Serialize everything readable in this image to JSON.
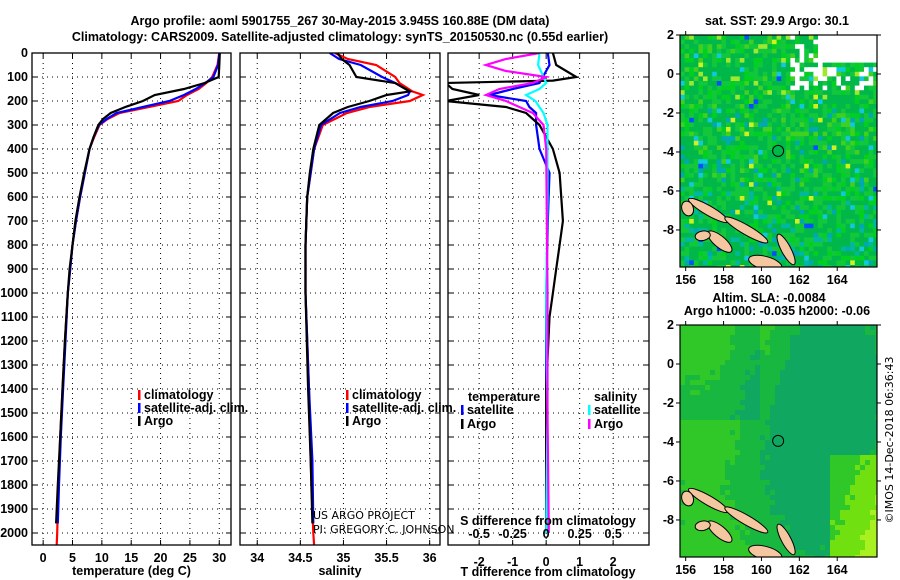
{
  "title": {
    "line1": "Argo profile: aoml 5901755_267 30-May-2015 3.945S 160.88E (DM data)",
    "line2": "Climatology: CARS2009. Satellite-adjusted climatology: synTS_20150530.nc (0.55d earlier)"
  },
  "colors": {
    "climatology": "#ff0000",
    "satellite": "#0000ff",
    "argo": "#000000",
    "sat_salinity": "#00ffff",
    "argo_salinity": "#ff00ff",
    "land": "#f5c7a0"
  },
  "credit": {
    "line1": "US ARGO PROJECT",
    "line2": "PI: GREGORY C. JOHNSON"
  },
  "watermark": "©IMOS 14-Dec-2018 06:36:43",
  "chart_data": [
    {
      "type": "line",
      "name": "temperature-profile",
      "xlabel": "temperature (deg C)",
      "ylabel": "pressure",
      "xlim": [
        -1.9,
        32
      ],
      "ylim": [
        2050,
        0
      ],
      "xticks": [
        0,
        5,
        10,
        15,
        20,
        25,
        30
      ],
      "yticks": [
        0,
        100,
        200,
        300,
        400,
        500,
        600,
        700,
        800,
        900,
        1000,
        1100,
        1200,
        1300,
        1400,
        1500,
        1600,
        1700,
        1800,
        1900,
        2000
      ],
      "legend": {
        "placement": "middle-right",
        "entries": [
          "climatology",
          "satellite-adj. clim.",
          "Argo"
        ]
      },
      "series": [
        {
          "name": "climatology",
          "color": "#ff0000",
          "points": [
            [
              0,
              30
            ],
            [
              50,
              29.7
            ],
            [
              100,
              28.8
            ],
            [
              125,
              27.8
            ],
            [
              150,
              26.5
            ],
            [
              175,
              24.5
            ],
            [
              200,
              23
            ],
            [
              225,
              18
            ],
            [
              250,
              13
            ],
            [
              275,
              11
            ],
            [
              300,
              9.6
            ],
            [
              350,
              8.7
            ],
            [
              400,
              7.9
            ],
            [
              500,
              7.1
            ],
            [
              600,
              6.3
            ],
            [
              700,
              5.6
            ],
            [
              800,
              5.0
            ],
            [
              900,
              4.6
            ],
            [
              1000,
              4.2
            ],
            [
              1200,
              3.7
            ],
            [
              1400,
              3.3
            ],
            [
              1600,
              2.9
            ],
            [
              1800,
              2.6
            ],
            [
              2000,
              2.4
            ],
            [
              2050,
              2.3
            ]
          ]
        },
        {
          "name": "satellite-adj. clim.",
          "color": "#0000ff",
          "points": [
            [
              0,
              30
            ],
            [
              50,
              29.8
            ],
            [
              100,
              29
            ],
            [
              125,
              27.6
            ],
            [
              150,
              26
            ],
            [
              175,
              24
            ],
            [
              200,
              21.5
            ],
            [
              225,
              17
            ],
            [
              250,
              12.5
            ],
            [
              275,
              10.8
            ],
            [
              300,
              9.5
            ],
            [
              350,
              8.6
            ],
            [
              400,
              7.9
            ],
            [
              500,
              7.1
            ],
            [
              600,
              6.3
            ],
            [
              700,
              5.6
            ],
            [
              800,
              5.0
            ],
            [
              900,
              4.6
            ],
            [
              1000,
              4.2
            ],
            [
              1200,
              3.8
            ],
            [
              1400,
              3.4
            ],
            [
              1600,
              3.0
            ],
            [
              1800,
              2.7
            ],
            [
              1960,
              2.5
            ]
          ]
        },
        {
          "name": "Argo",
          "color": "#000000",
          "points": [
            [
              0,
              30.1
            ],
            [
              50,
              30
            ],
            [
              100,
              29.9
            ],
            [
              125,
              27.5
            ],
            [
              150,
              24
            ],
            [
              175,
              19
            ],
            [
              200,
              17
            ],
            [
              225,
              14
            ],
            [
              250,
              11.5
            ],
            [
              275,
              10.2
            ],
            [
              300,
              9.4
            ],
            [
              350,
              8.6
            ],
            [
              400,
              7.9
            ],
            [
              500,
              7.0
            ],
            [
              600,
              6.2
            ],
            [
              700,
              5.5
            ],
            [
              800,
              5.0
            ],
            [
              900,
              4.5
            ],
            [
              1000,
              4.2
            ],
            [
              1200,
              3.7
            ],
            [
              1400,
              3.3
            ],
            [
              1600,
              2.9
            ],
            [
              1800,
              2.5
            ],
            [
              1960,
              2.2
            ]
          ]
        }
      ]
    },
    {
      "type": "line",
      "name": "salinity-profile",
      "xlabel": "salinity",
      "xlim": [
        33.8,
        36.12
      ],
      "ylim": [
        2050,
        0
      ],
      "xticks": [
        34,
        34.5,
        35,
        35.5,
        36
      ],
      "legend": {
        "placement": "middle-right",
        "entries": [
          "climatology",
          "satellite-adj. clim.",
          "Argo"
        ]
      },
      "series": [
        {
          "name": "climatology",
          "color": "#ff0000",
          "points": [
            [
              0,
              34.9
            ],
            [
              25,
              35.05
            ],
            [
              50,
              35.38
            ],
            [
              100,
              35.6
            ],
            [
              125,
              35.65
            ],
            [
              160,
              35.8
            ],
            [
              175,
              35.92
            ],
            [
              200,
              35.77
            ],
            [
              225,
              35.3
            ],
            [
              250,
              35.04
            ],
            [
              300,
              34.76
            ],
            [
              400,
              34.66
            ],
            [
              500,
              34.62
            ],
            [
              600,
              34.58
            ],
            [
              800,
              34.56
            ],
            [
              1000,
              34.56
            ],
            [
              1400,
              34.6
            ],
            [
              1700,
              34.62
            ],
            [
              2000,
              34.65
            ],
            [
              2050,
              34.66
            ]
          ]
        },
        {
          "name": "satellite-adj. clim.",
          "color": "#0000ff",
          "points": [
            [
              0,
              34.84
            ],
            [
              25,
              34.95
            ],
            [
              50,
              35.2
            ],
            [
              100,
              35.45
            ],
            [
              125,
              35.6
            ],
            [
              160,
              35.77
            ],
            [
              175,
              35.75
            ],
            [
              200,
              35.57
            ],
            [
              225,
              35.2
            ],
            [
              250,
              34.96
            ],
            [
              300,
              34.74
            ],
            [
              400,
              34.66
            ],
            [
              500,
              34.62
            ],
            [
              600,
              34.58
            ],
            [
              800,
              34.56
            ],
            [
              1000,
              34.56
            ],
            [
              1400,
              34.6
            ],
            [
              1700,
              34.64
            ],
            [
              1960,
              34.65
            ]
          ]
        },
        {
          "name": "Argo",
          "color": "#000000",
          "points": [
            [
              0,
              34.93
            ],
            [
              25,
              34.98
            ],
            [
              50,
              35.07
            ],
            [
              100,
              35.15
            ],
            [
              125,
              35.6
            ],
            [
              160,
              35.77
            ],
            [
              175,
              35.5
            ],
            [
              200,
              35.3
            ],
            [
              225,
              35.05
            ],
            [
              250,
              34.88
            ],
            [
              300,
              34.72
            ],
            [
              400,
              34.65
            ],
            [
              500,
              34.61
            ],
            [
              600,
              34.58
            ],
            [
              800,
              34.56
            ],
            [
              1000,
              34.56
            ],
            [
              1400,
              34.59
            ],
            [
              1700,
              34.62
            ],
            [
              1960,
              34.64
            ]
          ]
        }
      ]
    },
    {
      "type": "line",
      "name": "difference-profile",
      "xlabel": "T difference from climatology",
      "x2label": "S difference from climatology",
      "xlim": [
        -2.93,
        3.07
      ],
      "x2lim": [
        -0.7325,
        0.7675
      ],
      "ylim": [
        2050,
        0
      ],
      "xticks": [
        -2,
        -1,
        0,
        1,
        2
      ],
      "x2ticks": [
        -0.5,
        -0.25,
        0,
        0.25,
        0.5
      ],
      "legend": {
        "placement": "bottom",
        "temperature_title": "temperature",
        "salinity_title": "salinity",
        "entries": [
          "satellite",
          "Argo",
          "satellite",
          "Argo"
        ]
      },
      "series": [
        {
          "name": "T satellite",
          "axis": "T",
          "color": "#0000ff",
          "points": [
            [
              0,
              0.05
            ],
            [
              50,
              0.1
            ],
            [
              100,
              -0.1
            ],
            [
              125,
              -0.2
            ],
            [
              150,
              -1
            ],
            [
              175,
              -1.7
            ],
            [
              200,
              -0.6
            ],
            [
              225,
              -0.5
            ],
            [
              250,
              -0.3
            ],
            [
              300,
              -0.3
            ],
            [
              400,
              -0.2
            ],
            [
              500,
              0.1
            ],
            [
              700,
              0.05
            ],
            [
              1000,
              0
            ],
            [
              1500,
              0
            ],
            [
              2000,
              0
            ]
          ]
        },
        {
          "name": "T Argo",
          "axis": "T",
          "color": "#000000",
          "points": [
            [
              0,
              0.2
            ],
            [
              50,
              0.3
            ],
            [
              100,
              0.9
            ],
            [
              115,
              0.2
            ],
            [
              125,
              -3
            ],
            [
              150,
              -2.8
            ],
            [
              175,
              -2
            ],
            [
              200,
              -3
            ],
            [
              225,
              -1.2
            ],
            [
              250,
              -0.6
            ],
            [
              300,
              -0.2
            ],
            [
              400,
              0.2
            ],
            [
              500,
              0.4
            ],
            [
              700,
              0.5
            ],
            [
              800,
              0.4
            ],
            [
              900,
              0.3
            ],
            [
              1000,
              0.2
            ],
            [
              1100,
              0.1
            ],
            [
              1400,
              0
            ],
            [
              1600,
              0
            ],
            [
              2000,
              0
            ]
          ]
        },
        {
          "name": "S satellite",
          "axis": "S",
          "color": "#00ffff",
          "points": [
            [
              0,
              -0.05
            ],
            [
              50,
              -0.06
            ],
            [
              100,
              -0.02
            ],
            [
              125,
              0
            ],
            [
              150,
              -0.05
            ],
            [
              175,
              -0.15
            ],
            [
              200,
              -0.08
            ],
            [
              250,
              -0.02
            ],
            [
              300,
              0.01
            ],
            [
              600,
              0.01
            ],
            [
              1000,
              0
            ],
            [
              1500,
              0.01
            ],
            [
              2000,
              0
            ]
          ]
        },
        {
          "name": "S Argo",
          "axis": "S",
          "color": "#ff00ff",
          "points": [
            [
              0,
              -0.05
            ],
            [
              25,
              -0.3
            ],
            [
              50,
              -0.45
            ],
            [
              75,
              -0.3
            ],
            [
              100,
              0
            ],
            [
              125,
              -0.1
            ],
            [
              150,
              -0.35
            ],
            [
              175,
              -0.45
            ],
            [
              200,
              -0.3
            ],
            [
              250,
              -0.1
            ],
            [
              300,
              -0.02
            ],
            [
              400,
              0
            ],
            [
              1000,
              0.01
            ],
            [
              1500,
              0.01
            ],
            [
              2000,
              0.02
            ]
          ]
        }
      ]
    },
    {
      "type": "heatmap",
      "name": "sst-map",
      "title": "sat. SST: 29.9 Argo: 30.1",
      "xlim": [
        155.7,
        166.1
      ],
      "ylim": [
        -9.9,
        2
      ],
      "xticks": [
        156,
        158,
        160,
        162,
        164
      ],
      "yticks": [
        2,
        0,
        -2,
        -4,
        -6,
        -8
      ],
      "float_position": [
        160.88,
        -3.945
      ]
    },
    {
      "type": "heatmap",
      "name": "sla-map",
      "title": "Altim. SLA: -0.0084",
      "subtitle": "Argo h1000: -0.035 h2000: -0.06",
      "xlim": [
        155.7,
        166.1
      ],
      "ylim": [
        -9.9,
        2
      ],
      "xticks": [
        156,
        158,
        160,
        162,
        164
      ],
      "yticks": [
        2,
        0,
        -2,
        -4,
        -6,
        -8
      ],
      "float_position": [
        160.88,
        -3.945
      ]
    }
  ]
}
